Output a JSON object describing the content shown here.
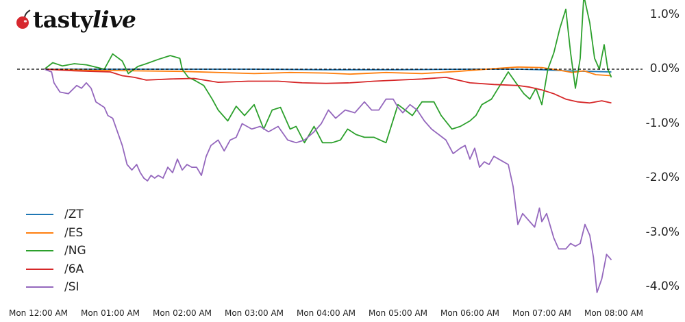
{
  "logo": {
    "brand_plain": "tasty",
    "brand_italic": "live",
    "icon": "cherry-icon",
    "icon_color": "#d7282f"
  },
  "chart_data": {
    "type": "line",
    "title": "",
    "xlabel": "",
    "ylabel": "",
    "x_unit": "minutes since Mon 12:00 AM",
    "xlim": [
      -5,
      480
    ],
    "ylim": [
      -4.2,
      1.1
    ],
    "grid": false,
    "legend_position": "lower left",
    "baseline": {
      "value": 0.0,
      "style": "dashed",
      "color": "#000000"
    },
    "x_ticks": [
      {
        "value": 0,
        "label": "Mon 12:00 AM"
      },
      {
        "value": 60,
        "label": "Mon 01:00 AM"
      },
      {
        "value": 120,
        "label": "Mon 02:00 AM"
      },
      {
        "value": 180,
        "label": "Mon 03:00 AM"
      },
      {
        "value": 240,
        "label": "Mon 04:00 AM"
      },
      {
        "value": 300,
        "label": "Mon 05:00 AM"
      },
      {
        "value": 360,
        "label": "Mon 06:00 AM"
      },
      {
        "value": 420,
        "label": "Mon 07:00 AM"
      },
      {
        "value": 480,
        "label": "Mon 08:00 AM"
      }
    ],
    "y_ticks": [
      {
        "value": 1.0,
        "label": "1.0%"
      },
      {
        "value": 0.0,
        "label": "0.0%"
      },
      {
        "value": -1.0,
        "label": "-1.0%"
      },
      {
        "value": -2.0,
        "label": "-2.0%"
      },
      {
        "value": -3.0,
        "label": "-3.0%"
      },
      {
        "value": -4.0,
        "label": "-4.0%"
      }
    ],
    "series": [
      {
        "name": "/ZT",
        "color": "#1f77b4",
        "x": [
          5,
          60,
          120,
          180,
          240,
          300,
          360,
          400,
          420,
          440,
          460,
          478
        ],
        "y": [
          0.0,
          0.0,
          0.0,
          0.0,
          -0.01,
          -0.01,
          0.0,
          0.0,
          -0.01,
          -0.03,
          -0.04,
          -0.05
        ]
      },
      {
        "name": "/ES",
        "color": "#ff7f0e",
        "x": [
          5,
          40,
          80,
          120,
          150,
          180,
          210,
          240,
          260,
          290,
          320,
          350,
          380,
          400,
          420,
          435,
          445,
          455,
          465,
          478
        ],
        "y": [
          0.0,
          -0.02,
          -0.03,
          -0.04,
          -0.06,
          -0.08,
          -0.06,
          -0.07,
          -0.09,
          -0.06,
          -0.08,
          -0.04,
          0.01,
          0.04,
          0.03,
          -0.02,
          -0.06,
          -0.03,
          -0.1,
          -0.12
        ]
      },
      {
        "name": "/NG",
        "color": "#2ca02c",
        "x": [
          5,
          12,
          20,
          30,
          40,
          55,
          62,
          70,
          75,
          83,
          90,
          100,
          110,
          118,
          120,
          125,
          130,
          138,
          145,
          150,
          158,
          165,
          172,
          180,
          188,
          195,
          202,
          210,
          215,
          222,
          230,
          237,
          245,
          252,
          258,
          265,
          272,
          280,
          290,
          300,
          306,
          312,
          320,
          330,
          336,
          345,
          352,
          360,
          365,
          370,
          378,
          385,
          392,
          400,
          405,
          410,
          415,
          420,
          425,
          430,
          435,
          440,
          444,
          448,
          452,
          455,
          460,
          464,
          468,
          472,
          475,
          478
        ],
        "y": [
          0.0,
          0.12,
          0.06,
          0.1,
          0.08,
          0.0,
          0.28,
          0.15,
          -0.08,
          0.05,
          0.1,
          0.18,
          0.25,
          0.2,
          0.0,
          -0.15,
          -0.2,
          -0.3,
          -0.55,
          -0.75,
          -0.95,
          -0.68,
          -0.85,
          -0.65,
          -1.1,
          -0.75,
          -0.7,
          -1.1,
          -1.05,
          -1.35,
          -1.05,
          -1.35,
          -1.35,
          -1.3,
          -1.1,
          -1.2,
          -1.25,
          -1.25,
          -1.35,
          -0.65,
          -0.75,
          -0.85,
          -0.6,
          -0.6,
          -0.85,
          -1.1,
          -1.05,
          -0.95,
          -0.85,
          -0.65,
          -0.55,
          -0.3,
          -0.05,
          -0.3,
          -0.45,
          -0.55,
          -0.35,
          -0.65,
          0.0,
          0.3,
          0.75,
          1.1,
          0.3,
          -0.35,
          0.2,
          1.35,
          0.85,
          0.2,
          0.0,
          0.45,
          0.0,
          -0.15
        ]
      },
      {
        "name": "/6A",
        "color": "#d62728",
        "x": [
          5,
          30,
          60,
          70,
          80,
          90,
          110,
          130,
          150,
          175,
          200,
          220,
          240,
          260,
          280,
          300,
          320,
          340,
          360,
          380,
          400,
          410,
          420,
          430,
          440,
          450,
          460,
          470,
          478
        ],
        "y": [
          0.0,
          -0.03,
          -0.05,
          -0.12,
          -0.15,
          -0.2,
          -0.18,
          -0.17,
          -0.24,
          -0.22,
          -0.22,
          -0.25,
          -0.26,
          -0.25,
          -0.22,
          -0.2,
          -0.18,
          -0.15,
          -0.25,
          -0.28,
          -0.3,
          -0.33,
          -0.38,
          -0.45,
          -0.55,
          -0.6,
          -0.62,
          -0.58,
          -0.62
        ]
      },
      {
        "name": "/SI",
        "color": "#9467bd",
        "x": [
          5,
          11,
          13,
          18,
          25,
          32,
          36,
          40,
          44,
          48,
          55,
          58,
          62,
          66,
          70,
          74,
          78,
          82,
          85,
          88,
          91,
          94,
          97,
          100,
          104,
          108,
          112,
          116,
          120,
          124,
          128,
          132,
          136,
          140,
          144,
          150,
          155,
          160,
          165,
          170,
          178,
          185,
          192,
          200,
          208,
          215,
          222,
          230,
          236,
          242,
          248,
          256,
          264,
          272,
          278,
          284,
          290,
          296,
          300,
          304,
          310,
          316,
          322,
          328,
          334,
          340,
          346,
          352,
          356,
          360,
          364,
          368,
          372,
          376,
          380,
          384,
          388,
          392,
          396,
          400,
          404,
          410,
          414,
          418,
          420,
          424,
          430,
          434,
          440,
          444,
          448,
          452,
          456,
          460,
          463,
          466,
          470,
          474,
          478
        ],
        "y": [
          0.0,
          -0.05,
          -0.25,
          -0.42,
          -0.45,
          -0.3,
          -0.35,
          -0.25,
          -0.35,
          -0.6,
          -0.7,
          -0.85,
          -0.9,
          -1.15,
          -1.4,
          -1.75,
          -1.85,
          -1.75,
          -1.9,
          -2.0,
          -2.05,
          -1.95,
          -2.0,
          -1.95,
          -2.0,
          -1.8,
          -1.9,
          -1.65,
          -1.85,
          -1.75,
          -1.8,
          -1.8,
          -1.95,
          -1.6,
          -1.4,
          -1.3,
          -1.5,
          -1.3,
          -1.25,
          -1.0,
          -1.1,
          -1.05,
          -1.15,
          -1.05,
          -1.3,
          -1.35,
          -1.3,
          -1.15,
          -1.0,
          -0.75,
          -0.9,
          -0.75,
          -0.8,
          -0.6,
          -0.75,
          -0.75,
          -0.55,
          -0.55,
          -0.7,
          -0.8,
          -0.65,
          -0.75,
          -0.95,
          -1.1,
          -1.2,
          -1.3,
          -1.55,
          -1.45,
          -1.4,
          -1.65,
          -1.45,
          -1.8,
          -1.7,
          -1.75,
          -1.6,
          -1.65,
          -1.7,
          -1.75,
          -2.15,
          -2.85,
          -2.65,
          -2.8,
          -2.9,
          -2.55,
          -2.8,
          -2.65,
          -3.1,
          -3.3,
          -3.3,
          -3.2,
          -3.25,
          -3.2,
          -2.85,
          -3.05,
          -3.45,
          -4.1,
          -3.85,
          -3.4,
          -3.5
        ]
      }
    ]
  },
  "legend": {
    "items": [
      {
        "label": "/ZT",
        "color": "#1f77b4"
      },
      {
        "label": "/ES",
        "color": "#ff7f0e"
      },
      {
        "label": "/NG",
        "color": "#2ca02c"
      },
      {
        "label": "/6A",
        "color": "#d62728"
      },
      {
        "label": "/SI",
        "color": "#9467bd"
      }
    ]
  }
}
